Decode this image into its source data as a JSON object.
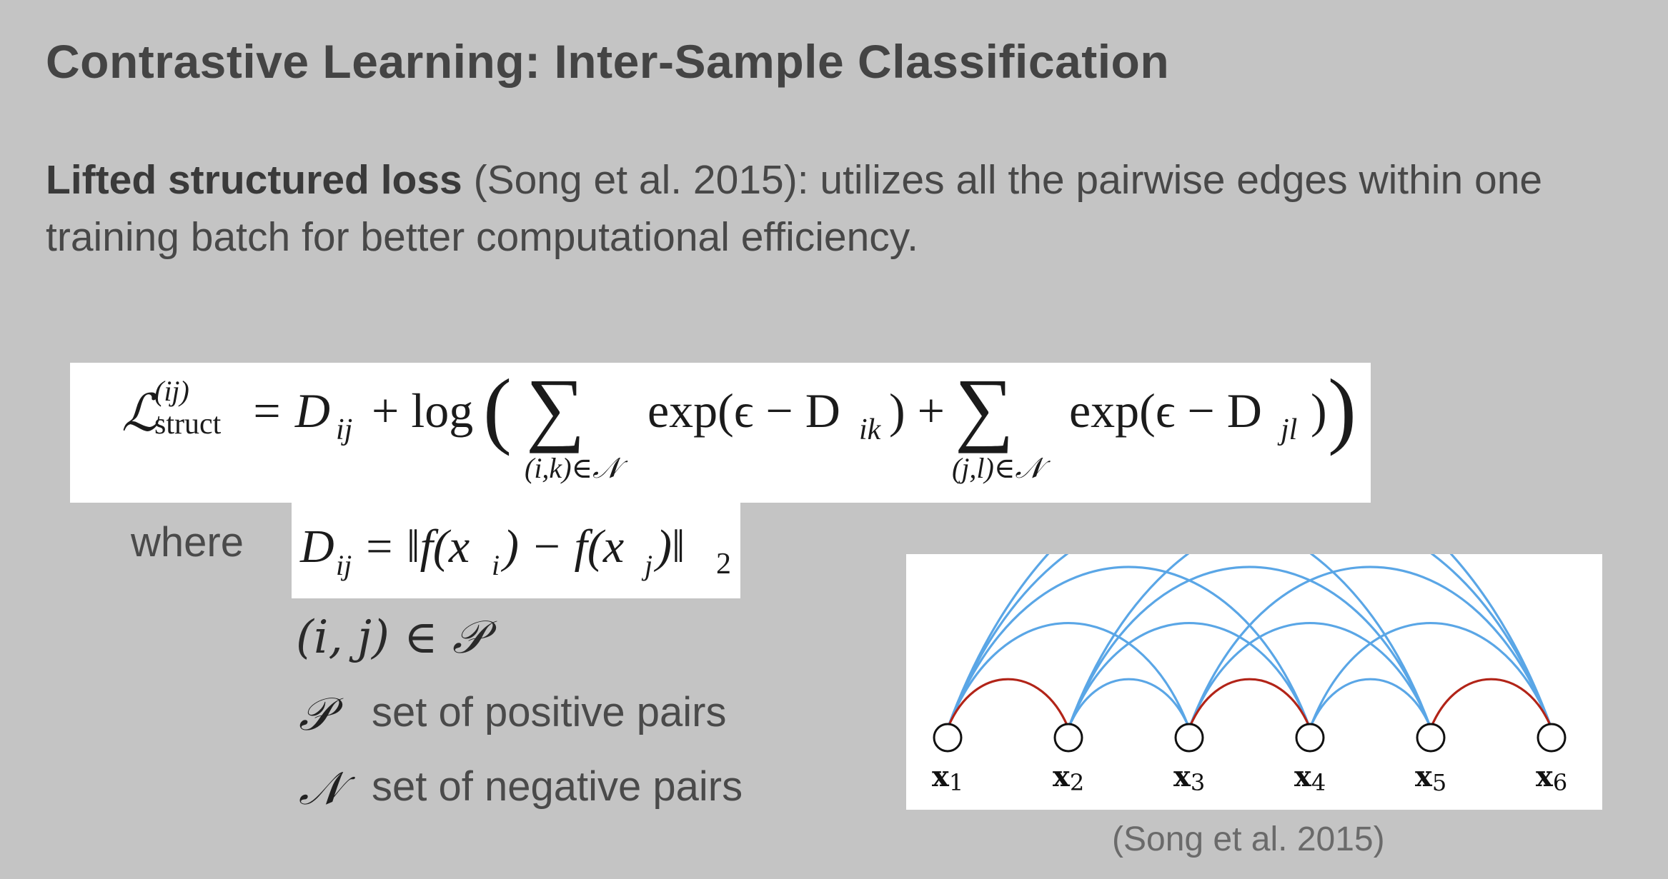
{
  "slide": {
    "title": "Contrastive Learning: Inter-Sample Classification",
    "intro_bold": "Lifted structured loss",
    "intro_rest": " (Song et al. 2015): utilizes all the pairwise edges within one training batch for better computational efficiency."
  },
  "formula": {
    "lhs": "ℒ",
    "lhs_sup": "(ij)",
    "lhs_sub": "struct",
    "eq_part": "= D",
    "dij_sub": "ij",
    "plus_log": "+ log",
    "open_paren": "(",
    "close_paren": ")",
    "sigma": "∑",
    "sum1_sub": "(i,k)∈𝒩",
    "term1": "exp(ϵ − D",
    "term1_sub": "ik",
    "term1_close": ") +",
    "sum2_sub": "(j,l)∈𝒩",
    "term2": "exp(ϵ − D",
    "term2_sub": "jl",
    "term2_close": ")"
  },
  "where": {
    "label": "where",
    "dij_lhs": "D",
    "dij_sub": "ij",
    "dij_rhs_a": " = ‖f(x",
    "dij_sub_i": "i",
    "dij_rhs_b": ") − f(x",
    "dij_sub_j": "j",
    "dij_rhs_c": ")‖",
    "dij_norm_sub": "2",
    "pair_membership": "(i, j) ∈ 𝒫",
    "positive_symbol": "𝒫",
    "positive_text": "set of positive pairs",
    "negative_symbol": "𝒩",
    "negative_text": "set of negative pairs"
  },
  "figure": {
    "nodes": [
      {
        "label": "x",
        "sub": "1"
      },
      {
        "label": "x",
        "sub": "2"
      },
      {
        "label": "x",
        "sub": "3"
      },
      {
        "label": "x",
        "sub": "4"
      },
      {
        "label": "x",
        "sub": "5"
      },
      {
        "label": "x",
        "sub": "6"
      }
    ],
    "positive_edges": [
      [
        1,
        2
      ],
      [
        3,
        4
      ],
      [
        5,
        6
      ]
    ],
    "negative_edges": [
      [
        1,
        3
      ],
      [
        1,
        4
      ],
      [
        1,
        5
      ],
      [
        1,
        6
      ],
      [
        2,
        3
      ],
      [
        2,
        4
      ],
      [
        2,
        5
      ],
      [
        2,
        6
      ],
      [
        3,
        5
      ],
      [
        3,
        6
      ],
      [
        4,
        5
      ],
      [
        4,
        6
      ]
    ],
    "positive_color": "#b22418",
    "negative_color": "#5aa6e6",
    "caption": "(Song et al. 2015)"
  }
}
